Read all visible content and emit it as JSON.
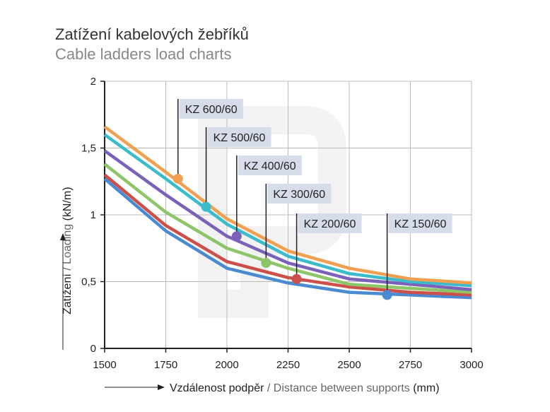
{
  "title": "Zatížení kabelových žebříků",
  "subtitle": "Cable ladders load charts",
  "chart_data": {
    "type": "line",
    "title": "Zatížení kabelových žebříků",
    "subtitle": "Cable ladders load charts",
    "xlabel_cz": "Vzdálenost podpěr",
    "xlabel_en": " / Distance between supports",
    "xlabel_unit": " (mm)",
    "ylabel_cz": "Zatížení",
    "ylabel_en": " / Loading",
    "ylabel_unit": " (kN/m)",
    "x": [
      1500,
      1750,
      2000,
      2250,
      2500,
      2750,
      3000
    ],
    "x_tick_labels": [
      "1500",
      "1750",
      "2000",
      "2250",
      "2500",
      "2750",
      "3000"
    ],
    "y_tick_labels": [
      "0",
      "0,5",
      "1",
      "1,5",
      "2"
    ],
    "y_ticks": [
      0,
      0.5,
      1,
      1.5,
      2
    ],
    "xlim": [
      1500,
      3000
    ],
    "ylim": [
      0,
      2
    ],
    "grid": true,
    "series": [
      {
        "name": "KZ 600/60",
        "color": "#f0a050",
        "values": [
          1.66,
          1.32,
          0.97,
          0.73,
          0.6,
          0.52,
          0.49
        ],
        "marker": [
          1800,
          1.27
        ]
      },
      {
        "name": "KZ 500/60",
        "color": "#3bbccc",
        "values": [
          1.6,
          1.27,
          0.93,
          0.69,
          0.56,
          0.5,
          0.47
        ],
        "marker": [
          1915,
          1.06
        ]
      },
      {
        "name": "KZ 400/60",
        "color": "#7b62b8",
        "values": [
          1.48,
          1.15,
          0.84,
          0.64,
          0.52,
          0.48,
          0.44
        ],
        "marker": [
          2040,
          0.84
        ]
      },
      {
        "name": "KZ 300/60",
        "color": "#8cc668",
        "values": [
          1.38,
          1.02,
          0.75,
          0.6,
          0.48,
          0.45,
          0.42
        ],
        "marker": [
          2160,
          0.64
        ]
      },
      {
        "name": "KZ 200/60",
        "color": "#cc4f4a",
        "values": [
          1.3,
          0.92,
          0.65,
          0.53,
          0.46,
          0.42,
          0.4
        ],
        "marker": [
          2285,
          0.52
        ]
      },
      {
        "name": "KZ 150/60",
        "color": "#4a8ad0",
        "values": [
          1.27,
          0.88,
          0.6,
          0.49,
          0.42,
          0.4,
          0.38
        ],
        "marker": [
          2655,
          0.4
        ]
      }
    ]
  }
}
